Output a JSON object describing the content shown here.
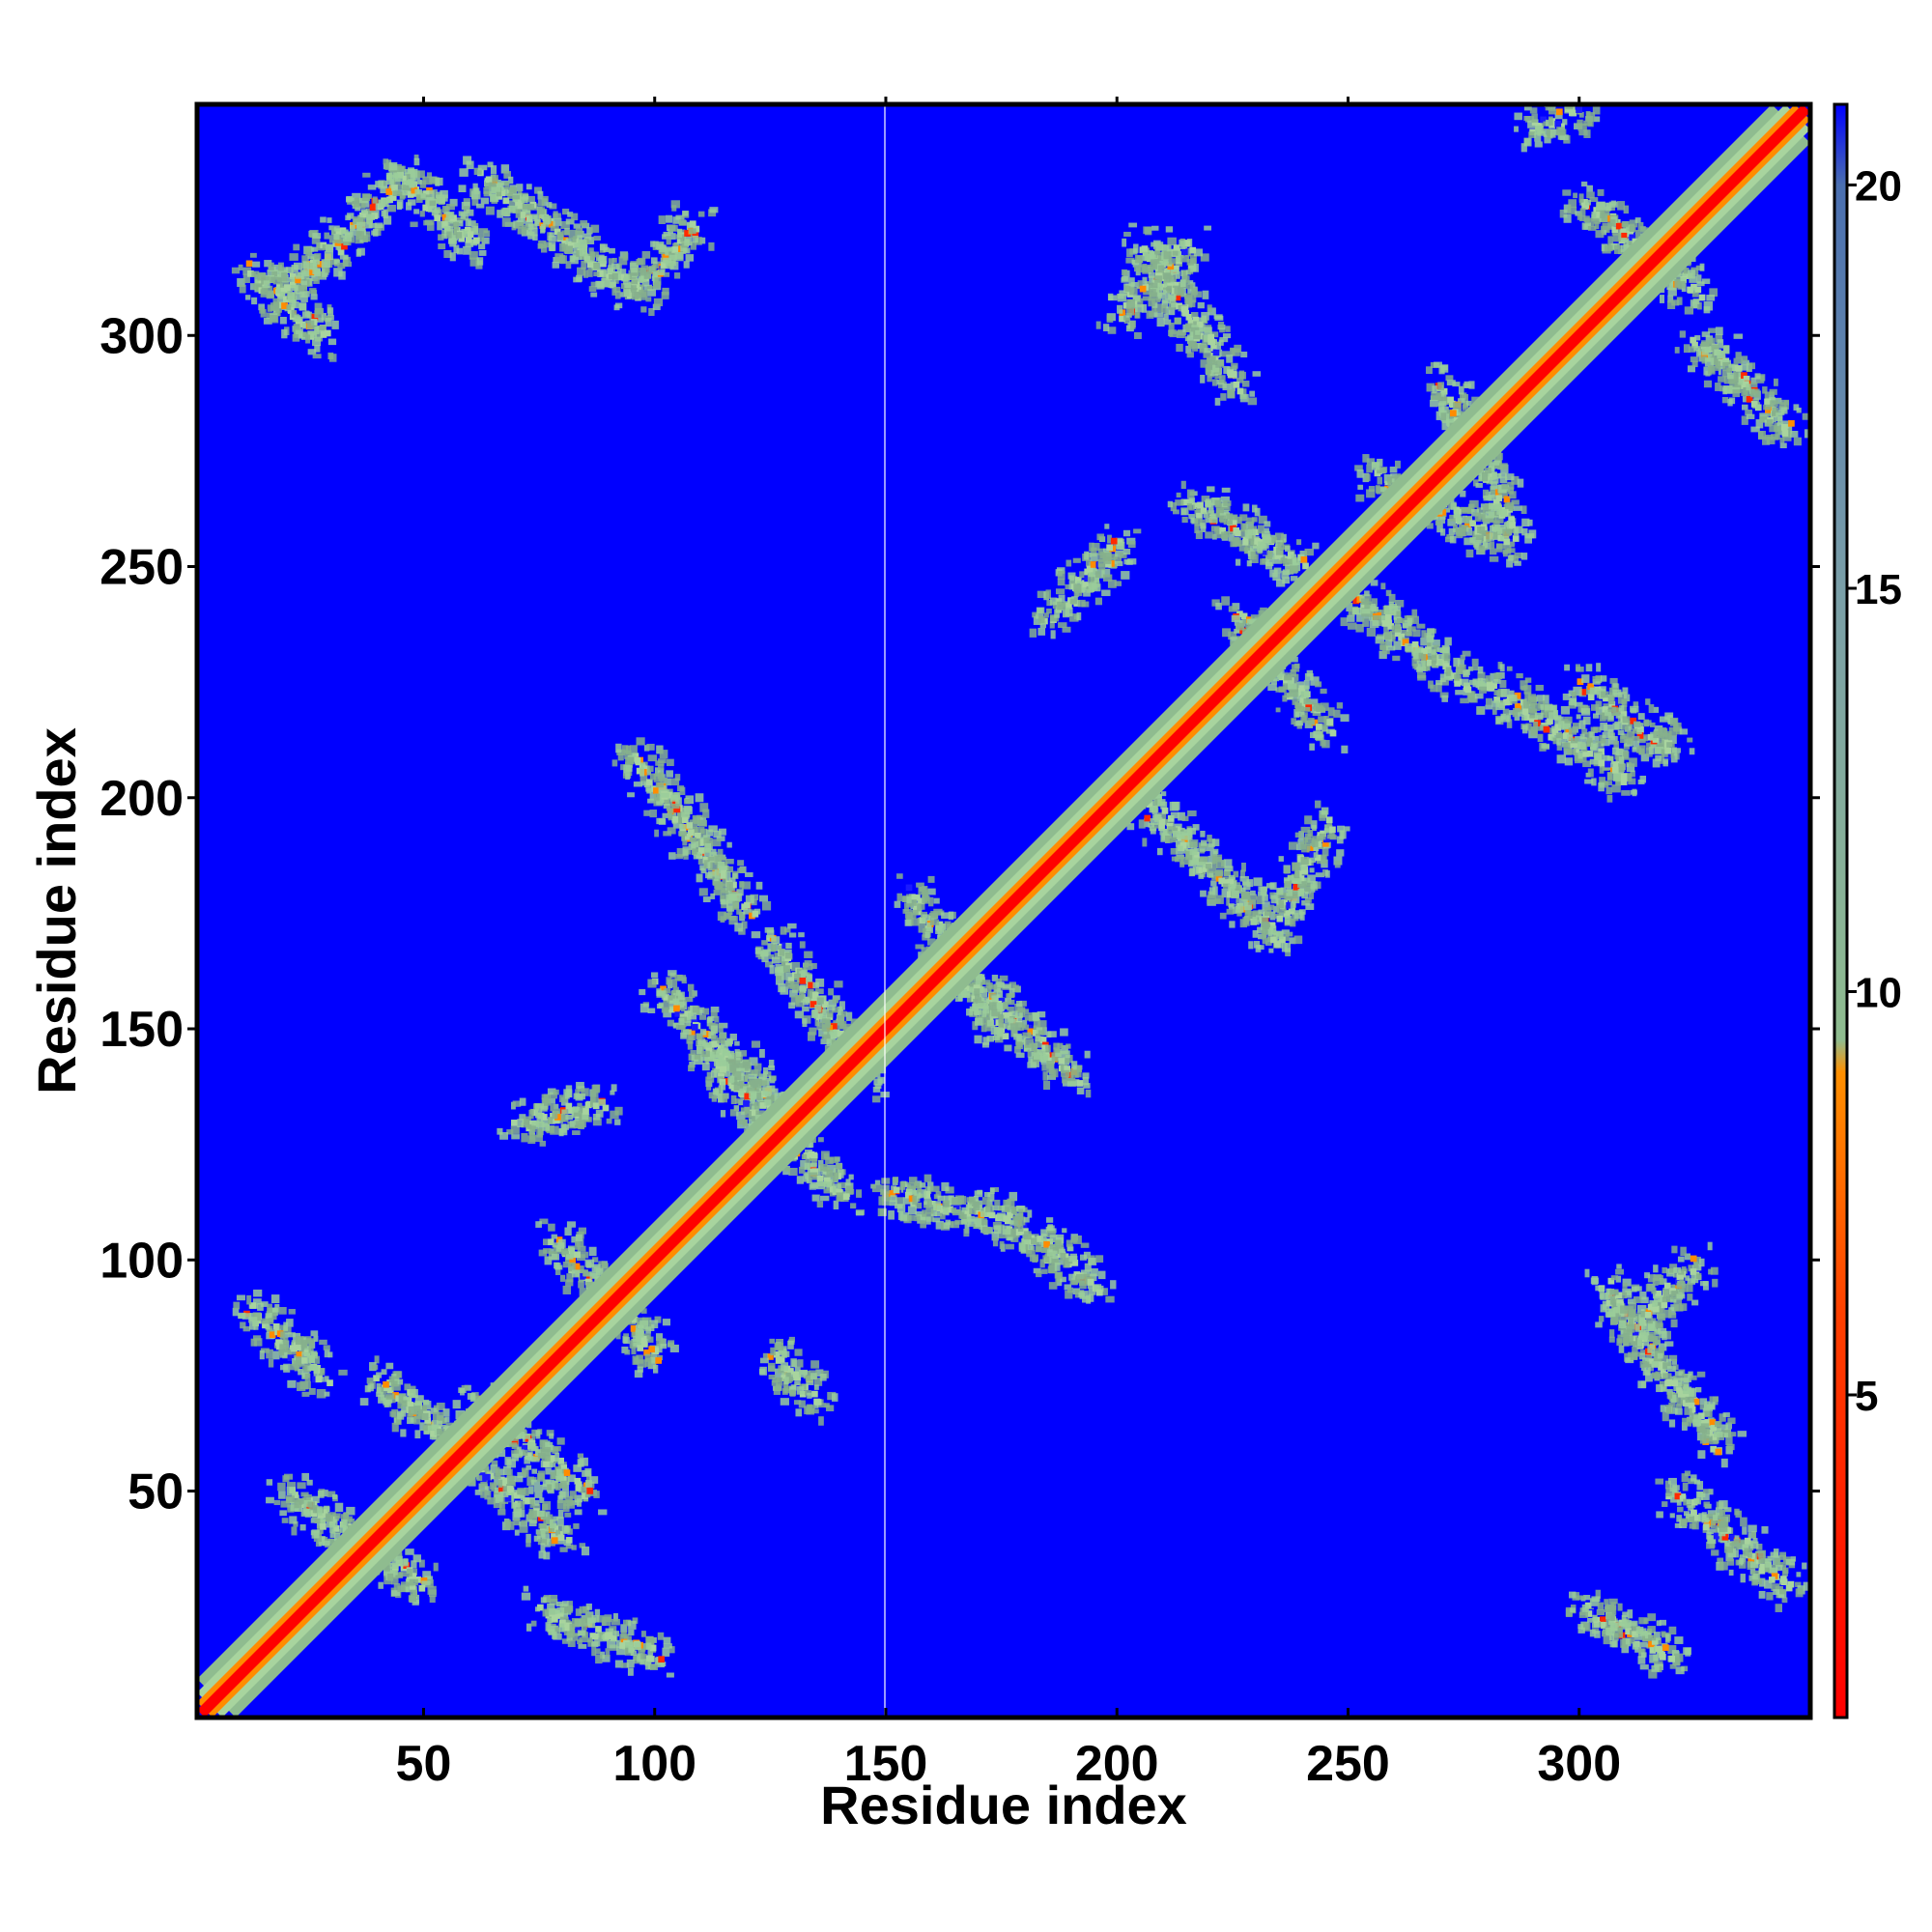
{
  "chart_data": {
    "type": "heatmap",
    "title": "",
    "xlabel": "Residue index",
    "ylabel": "Residue index",
    "xlim": [
      1,
      350
    ],
    "ylim": [
      1,
      350
    ],
    "x_ticks": [
      50,
      100,
      150,
      200,
      250,
      300
    ],
    "y_ticks": [
      50,
      100,
      150,
      200,
      250,
      300
    ],
    "colorbar": {
      "ticks": [
        5,
        10,
        15,
        20
      ],
      "range": [
        1,
        21
      ],
      "colors": [
        "#ff0000",
        "#ff8c00",
        "#8fbc8f",
        "#4682b4",
        "#0000ff"
      ]
    },
    "background_color": "#0000ff",
    "diagonal_colors": [
      "#ff0000",
      "#ff8c00",
      "#9acd9a"
    ],
    "contact_bands": [
      {
        "from": [
          12,
          315
        ],
        "to": [
          28,
          300
        ],
        "value": 12
      },
      {
        "from": [
          20,
          310
        ],
        "to": [
          45,
          335
        ],
        "value": 11
      },
      {
        "from": [
          45,
          335
        ],
        "to": [
          60,
          320
        ],
        "value": 12
      },
      {
        "from": [
          62,
          335
        ],
        "to": [
          95,
          310
        ],
        "value": 11
      },
      {
        "from": [
          95,
          310
        ],
        "to": [
          108,
          325
        ],
        "value": 12
      },
      {
        "from": [
          12,
          90
        ],
        "to": [
          28,
          75
        ],
        "value": 11
      },
      {
        "from": [
          20,
          50
        ],
        "to": [
          50,
          30
        ],
        "value": 10
      },
      {
        "from": [
          40,
          75
        ],
        "to": [
          80,
          40
        ],
        "value": 10
      },
      {
        "from": [
          60,
          70
        ],
        "to": [
          85,
          50
        ],
        "value": 11
      },
      {
        "from": [
          75,
          25
        ],
        "to": [
          100,
          15
        ],
        "value": 12
      },
      {
        "from": [
          70,
          130
        ],
        "to": [
          88,
          135
        ],
        "value": 11
      },
      {
        "from": [
          78,
          105
        ],
        "to": [
          100,
          80
        ],
        "value": 11
      },
      {
        "from": [
          95,
          210
        ],
        "to": [
          120,
          175
        ],
        "value": 11
      },
      {
        "from": [
          100,
          160
        ],
        "to": [
          130,
          130
        ],
        "value": 10
      },
      {
        "from": [
          110,
          145
        ],
        "to": [
          140,
          115
        ],
        "value": 10
      },
      {
        "from": [
          125,
          80
        ],
        "to": [
          135,
          70
        ],
        "value": 12
      },
      {
        "from": [
          125,
          170
        ],
        "to": [
          145,
          140
        ],
        "value": 11
      },
      {
        "from": [
          150,
          115
        ],
        "to": [
          175,
          110
        ],
        "value": 11
      },
      {
        "from": [
          175,
          110
        ],
        "to": [
          195,
          95
        ],
        "value": 12
      },
      {
        "from": [
          155,
          180
        ],
        "to": [
          175,
          150
        ],
        "value": 11
      },
      {
        "from": [
          170,
          160
        ],
        "to": [
          190,
          140
        ],
        "value": 11
      },
      {
        "from": [
          185,
          240
        ],
        "to": [
          200,
          255
        ],
        "value": 12
      },
      {
        "from": [
          205,
          200
        ],
        "to": [
          235,
          170
        ],
        "value": 11
      },
      {
        "from": [
          235,
          175
        ],
        "to": [
          245,
          195
        ],
        "value": 12
      },
      {
        "from": [
          205,
          320
        ],
        "to": [
          225,
          290
        ],
        "value": 12
      },
      {
        "from": [
          200,
          305
        ],
        "to": [
          215,
          320
        ],
        "value": 12
      },
      {
        "from": [
          215,
          265
        ],
        "to": [
          240,
          250
        ],
        "value": 11
      },
      {
        "from": [
          225,
          240
        ],
        "to": [
          245,
          215
        ],
        "value": 11
      },
      {
        "from": [
          250,
          245
        ],
        "to": [
          275,
          225
        ],
        "value": 11
      },
      {
        "from": [
          255,
          270
        ],
        "to": [
          285,
          255
        ],
        "value": 10
      },
      {
        "from": [
          270,
          290
        ],
        "to": [
          285,
          260
        ],
        "value": 11
      },
      {
        "from": [
          280,
          225
        ],
        "to": [
          310,
          205
        ],
        "value": 11
      },
      {
        "from": [
          300,
          225
        ],
        "to": [
          320,
          210
        ],
        "value": 12
      },
      {
        "from": [
          300,
          330
        ],
        "to": [
          325,
          310
        ],
        "value": 11
      },
      {
        "from": [
          325,
          300
        ],
        "to": [
          345,
          280
        ],
        "value": 12
      },
      {
        "from": [
          290,
          345
        ],
        "to": [
          300,
          350
        ],
        "value": 12
      },
      {
        "from": [
          305,
          95
        ],
        "to": [
          330,
          60
        ],
        "value": 11
      },
      {
        "from": [
          320,
          50
        ],
        "to": [
          345,
          30
        ],
        "value": 11
      },
      {
        "from": [
          300,
          25
        ],
        "to": [
          320,
          15
        ],
        "value": 12
      },
      {
        "from": [
          310,
          85
        ],
        "to": [
          325,
          100
        ],
        "value": 12
      }
    ]
  }
}
